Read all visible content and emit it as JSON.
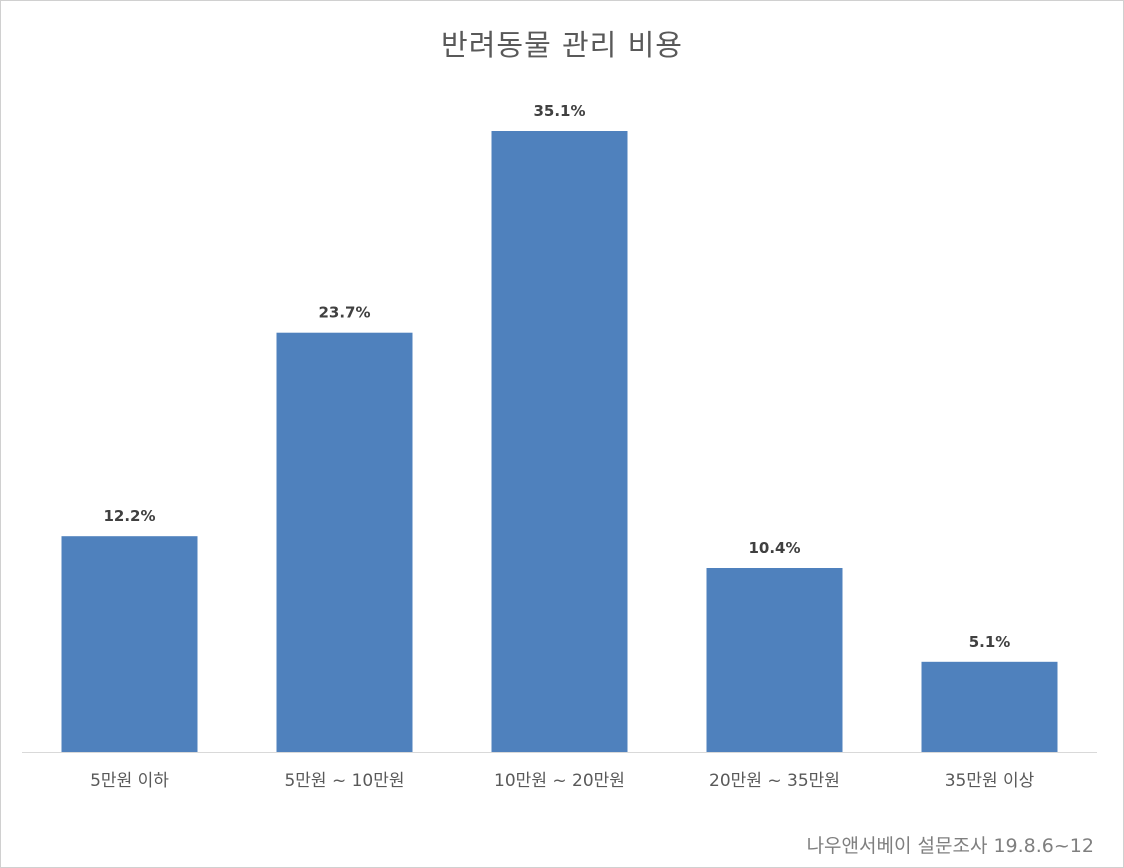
{
  "chart_data": {
    "type": "bar",
    "title": "반려동물 관리 비용",
    "categories": [
      "5만원 이하",
      "5만원 ~ 10만원",
      "10만원 ~ 20만원",
      "20만원 ~ 35만원",
      "35만원 이상"
    ],
    "values": [
      12.2,
      23.7,
      35.1,
      10.4,
      5.1
    ],
    "value_labels": [
      "12.2%",
      "23.7%",
      "35.1%",
      "10.4%",
      "5.1%"
    ],
    "xlabel": "",
    "ylabel": "",
    "ylim": [
      0,
      35.1
    ],
    "grid": false,
    "legend": "none",
    "bar_color": "#4f81bd",
    "source_note": "나우앤서베이 설문조사 19.8.6~12"
  }
}
